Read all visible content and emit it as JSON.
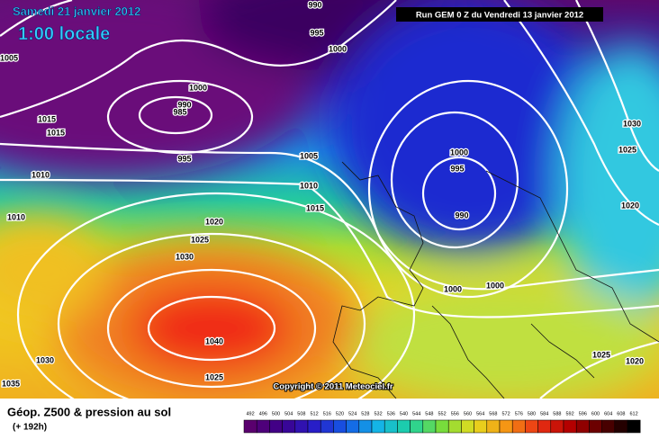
{
  "header": {
    "date": "Samedi 21 janvier 2012",
    "time": "1:00 locale",
    "run": "Run GEM 0 Z du Vendredi 13 janvier 2012"
  },
  "copyright": "Copyright © 2011 Meteociel.fr",
  "footer": {
    "title": "Géop. Z500 & pression au sol",
    "subtitle": "(+ 192h)"
  },
  "colorbar": {
    "labels": [
      492,
      496,
      500,
      504,
      508,
      512,
      516,
      520,
      524,
      528,
      532,
      536,
      540,
      544,
      548,
      552,
      556,
      560,
      564,
      568,
      572,
      576,
      580,
      584,
      588,
      592,
      596,
      600,
      604,
      608,
      612
    ]
  },
  "isobar_labels": [
    "990",
    "995",
    "1000",
    "1005",
    "1000",
    "990",
    "985",
    "1015",
    "1015",
    "995",
    "1000",
    "995",
    "1005",
    "1010",
    "1010",
    "1015",
    "990",
    "1020",
    "1010",
    "1025",
    "1030",
    "1000",
    "1000",
    "1040",
    "1030",
    "1025",
    "1020",
    "1025",
    "1030",
    "1025",
    "1035",
    "1020"
  ]
}
